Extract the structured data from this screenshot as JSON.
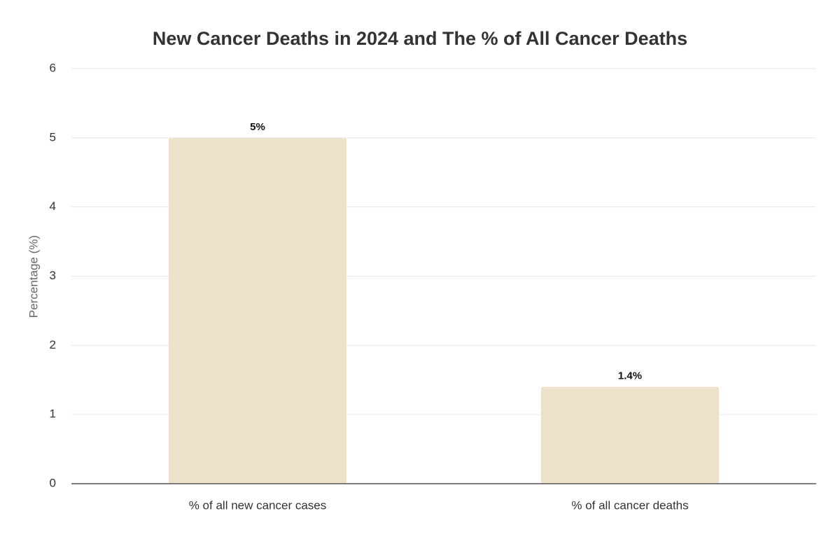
{
  "chart_data": {
    "type": "bar",
    "title": "New Cancer Deaths in 2024 and The % of All Cancer Deaths",
    "ylabel": "Percentage (%)",
    "categories": [
      "% of all new cancer cases",
      "% of all cancer deaths"
    ],
    "values": [
      5,
      1.4
    ],
    "value_labels": [
      "5%",
      "1.4%"
    ],
    "color": "#ede2c9",
    "ylim": [
      0,
      6
    ],
    "yticks": [
      0,
      1,
      2,
      3,
      4,
      5,
      6
    ],
    "grid": true
  }
}
